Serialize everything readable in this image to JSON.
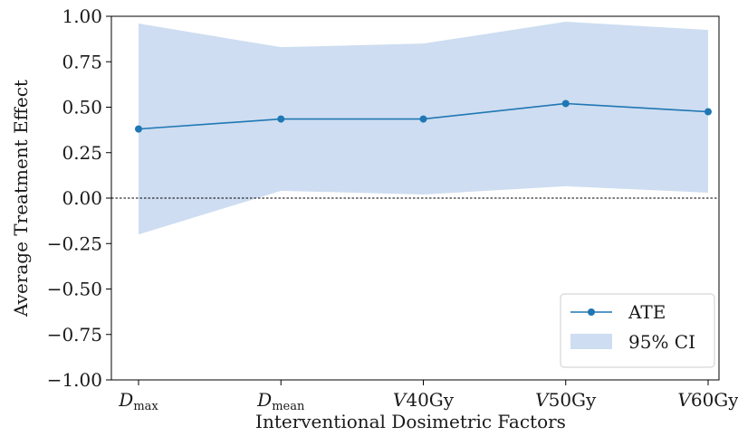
{
  "chart_data": {
    "type": "line",
    "title": "",
    "xlabel": "Interventional Dosimetric Factors",
    "ylabel": "Average Treatment Effect",
    "categories": [
      {
        "main": "D",
        "sub": "max",
        "suffix": ""
      },
      {
        "main": "D",
        "sub": "mean",
        "suffix": ""
      },
      {
        "main": "V",
        "sub": "",
        "suffix": "40Gy"
      },
      {
        "main": "V",
        "sub": "",
        "suffix": "50Gy"
      },
      {
        "main": "V",
        "sub": "",
        "suffix": "60Gy"
      }
    ],
    "series": [
      {
        "name": "ATE",
        "values": [
          0.38,
          0.435,
          0.435,
          0.52,
          0.475
        ],
        "color": "#1f77b4",
        "marker": "circle"
      }
    ],
    "ci": {
      "name": "95% CI",
      "lower": [
        -0.2,
        0.04,
        0.02,
        0.065,
        0.03
      ],
      "upper": [
        0.96,
        0.83,
        0.85,
        0.97,
        0.925
      ],
      "color": "#aec7e8"
    },
    "reference_line": {
      "y": 0.0,
      "style": "dashed",
      "color": "#000000"
    },
    "ylim": [
      -1.0,
      1.0
    ],
    "yticks": [
      "1.00",
      "0.75",
      "0.50",
      "0.25",
      "0.00",
      "−0.25",
      "−0.50",
      "−0.75",
      "−1.00"
    ],
    "ytick_values": [
      1.0,
      0.75,
      0.5,
      0.25,
      0.0,
      -0.25,
      -0.5,
      -0.75,
      -1.0
    ],
    "grid": false,
    "legend_position": "bottom-right"
  }
}
